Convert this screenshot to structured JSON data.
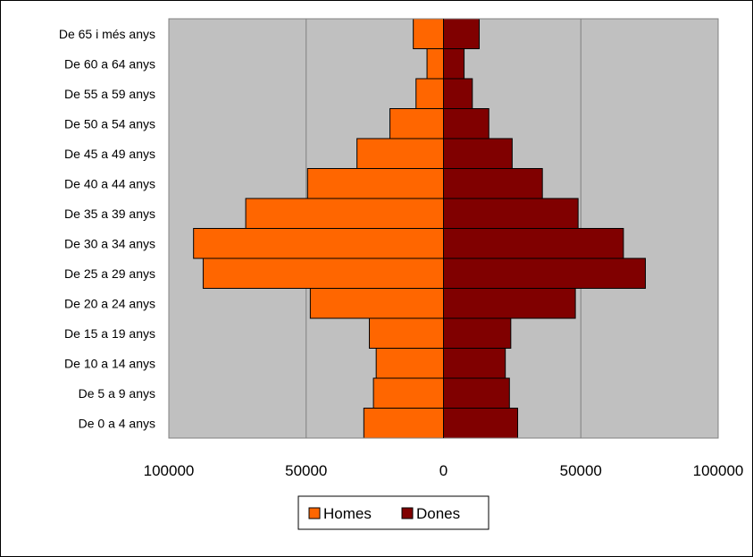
{
  "chart_data": {
    "type": "bar",
    "orientation": "horizontal",
    "layout": "population-pyramid",
    "categories": [
      "De 0 a 4 anys",
      "De 5 a 9 anys",
      "De 10 a 14 anys",
      "De 15 a 19 anys",
      "De 20 a 24 anys",
      "De 25 a 29 anys",
      "De 30 a 34 anys",
      "De 35 a 39 anys",
      "De 40 a 44 anys",
      "De 45 a 49 anys",
      "De 50 a 54 anys",
      "De 55 a 59 anys",
      "De 60 a 64 anys",
      "De 65 i més anys"
    ],
    "series": [
      {
        "name": "Homes",
        "side": "left",
        "values": [
          29000,
          25500,
          24500,
          27000,
          48500,
          87500,
          91000,
          72000,
          49500,
          31500,
          19500,
          10000,
          6000,
          11000
        ],
        "color": "#FF6600"
      },
      {
        "name": "Dones",
        "side": "right",
        "values": [
          27000,
          24000,
          22500,
          24500,
          48000,
          73500,
          65500,
          49000,
          36000,
          25000,
          16500,
          10500,
          7500,
          13000
        ],
        "color": "#800000"
      }
    ],
    "xlim": [
      -100000,
      100000
    ],
    "x_ticks": [
      -100000,
      -50000,
      0,
      50000,
      100000
    ],
    "x_tick_labels": [
      "100000",
      "50000",
      "0",
      "50000",
      "100000"
    ],
    "plot_background": "#C0C0C0",
    "grid": true,
    "legend": "bottom",
    "title": "",
    "xlabel": "",
    "ylabel": ""
  }
}
